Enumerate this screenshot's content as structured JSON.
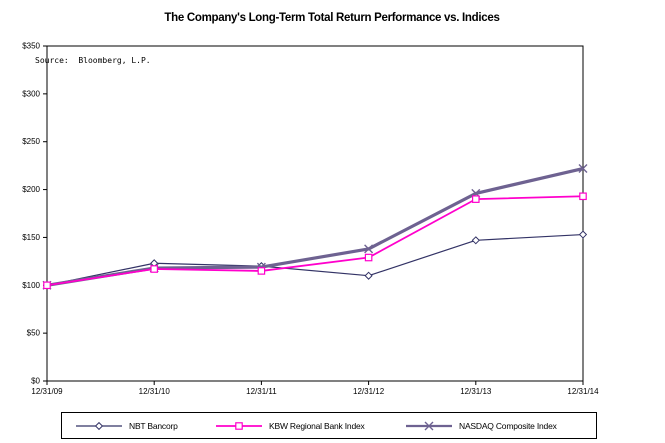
{
  "title": "The Company's Long-Term Total Return Performance vs. Indices",
  "source_note": "Source:  Bloomberg, L.P.",
  "colors": {
    "axis": "#000000",
    "background": "#FFFFFF",
    "nbt": "#333366",
    "kbw": "#FF00CC",
    "nasdaq": "#6E6291"
  },
  "chart_data": {
    "type": "line",
    "title": "The Company's Long-Term Total Return Performance vs. Indices",
    "xlabel": "",
    "ylabel": "",
    "categories": [
      "12/31/09",
      "12/31/10",
      "12/31/11",
      "12/31/12",
      "12/31/13",
      "12/31/14"
    ],
    "series": [
      {
        "name": "NBT Bancorp",
        "marker": "diamond",
        "color": "#333366",
        "line_width": 1.2,
        "values": [
          100,
          123,
          120,
          110,
          147,
          153
        ]
      },
      {
        "name": "KBW Regional Bank Index",
        "marker": "square",
        "color": "#FF00CC",
        "line_width": 1.8,
        "values": [
          100,
          117,
          115,
          129,
          190,
          193
        ]
      },
      {
        "name": "NASDAQ Composite Index",
        "marker": "x",
        "color": "#6E6291",
        "line_width": 3.2,
        "values": [
          100,
          118,
          119,
          138,
          196,
          222
        ]
      }
    ],
    "ylim": [
      0,
      350
    ],
    "y_ticks": [
      0,
      50,
      100,
      150,
      200,
      250,
      300,
      350
    ],
    "y_tick_labels": [
      "$0",
      "$50",
      "$100",
      "$150",
      "$200",
      "$250",
      "$300",
      "$350"
    ],
    "grid": false,
    "legend_position": "bottom",
    "draw_order": [
      0,
      2,
      1
    ],
    "legend_item_offsets": [
      14,
      154,
      344
    ]
  }
}
